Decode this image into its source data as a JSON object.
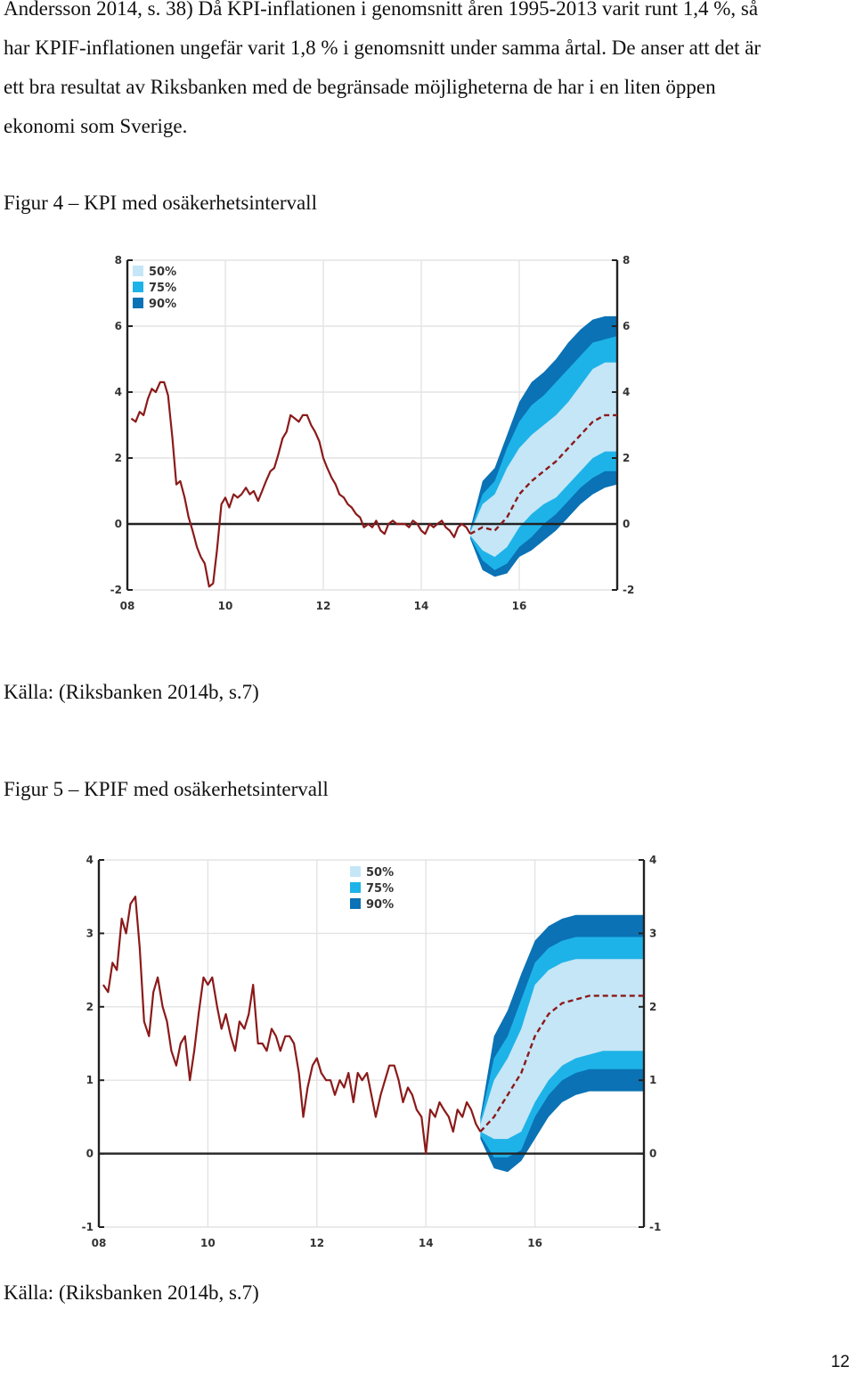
{
  "paragraph": {
    "lines": [
      "Andersson 2014, s. 38) Då KPI-inflationen i genomsnitt åren 1995-2013 varit runt 1,4 %, så",
      "har KPIF-inflationen ungefär varit 1,8 % i genomsnitt under samma årtal. De anser att det är",
      "ett bra resultat av Riksbanken med de begränsade möjligheterna de har i en liten öppen",
      "ekonomi som Sverige."
    ]
  },
  "figure4": {
    "caption": "Figur 4 – KPI med osäkerhetsintervall",
    "source": "Källa: (Riksbanken 2014b, s.7)"
  },
  "figure5": {
    "caption": "Figur 5 – KPIF med osäkerhetsintervall",
    "source": "Källa: (Riksbanken 2014b, s.7)"
  },
  "page_number": "12",
  "colors": {
    "line": "#8b1a1a",
    "band50": "#c5e6f7",
    "band75": "#1eb3e8",
    "band90": "#0a72b5",
    "axis": "#222222",
    "grid": "#e3e3e3"
  },
  "chart_data": [
    {
      "type": "area",
      "chart_id": "kpi",
      "xlim": [
        8,
        18
      ],
      "ylim": [
        -2,
        8
      ],
      "x_ticks": [
        8,
        10,
        12,
        14,
        16
      ],
      "x_tick_labels": [
        "08",
        "10",
        "12",
        "14",
        "16"
      ],
      "y_ticks": [
        -2,
        0,
        2,
        4,
        6,
        8
      ],
      "legend": [
        "50%",
        "75%",
        "90%"
      ],
      "legend_position": "top-left",
      "grid": true,
      "series": [
        {
          "kind": "outcome",
          "x": [
            8.08,
            8.17,
            8.25,
            8.33,
            8.42,
            8.5,
            8.58,
            8.67,
            8.75,
            8.83,
            8.92,
            9.0,
            9.08,
            9.17,
            9.25,
            9.33,
            9.42,
            9.5,
            9.58,
            9.67,
            9.75,
            9.83,
            9.92,
            10.0,
            10.08,
            10.17,
            10.25,
            10.33,
            10.42,
            10.5,
            10.58,
            10.67,
            10.75,
            10.83,
            10.92,
            11.0,
            11.08,
            11.17,
            11.25,
            11.33,
            11.42,
            11.5,
            11.58,
            11.67,
            11.75,
            11.83,
            11.92,
            12.0,
            12.08,
            12.17,
            12.25,
            12.33,
            12.42,
            12.5,
            12.58,
            12.67,
            12.75,
            12.83,
            12.92,
            13.0,
            13.08,
            13.17,
            13.25,
            13.33,
            13.42,
            13.5,
            13.58,
            13.67,
            13.75,
            13.83,
            13.92,
            14.0,
            14.08,
            14.17,
            14.25,
            14.33,
            14.42,
            14.5,
            14.58,
            14.67,
            14.75,
            14.83,
            14.92,
            15.0
          ],
          "y": [
            3.2,
            3.1,
            3.4,
            3.3,
            3.8,
            4.1,
            4.0,
            4.3,
            4.3,
            3.9,
            2.6,
            1.2,
            1.3,
            0.8,
            0.2,
            -0.2,
            -0.7,
            -1.0,
            -1.2,
            -1.9,
            -1.8,
            -0.8,
            0.6,
            0.8,
            0.5,
            0.9,
            0.8,
            0.9,
            1.1,
            0.9,
            1.0,
            0.7,
            1.0,
            1.3,
            1.6,
            1.7,
            2.1,
            2.6,
            2.8,
            3.3,
            3.2,
            3.1,
            3.3,
            3.3,
            3.0,
            2.8,
            2.5,
            2.0,
            1.7,
            1.4,
            1.2,
            0.9,
            0.8,
            0.6,
            0.5,
            0.3,
            0.2,
            -0.1,
            0.0,
            -0.1,
            0.1,
            -0.2,
            -0.3,
            0.0,
            0.1,
            0.0,
            0.0,
            0.0,
            -0.1,
            0.1,
            0.0,
            -0.2,
            -0.3,
            0.0,
            -0.1,
            0.0,
            0.1,
            -0.1,
            -0.2,
            -0.4,
            -0.1,
            0.0,
            -0.1,
            -0.3
          ]
        },
        {
          "kind": "forecast",
          "x": [
            15.0,
            15.25,
            15.5,
            15.75,
            16.0,
            16.25,
            16.5,
            16.75,
            17.0,
            17.25,
            17.5,
            17.75,
            18.0
          ],
          "y": [
            -0.3,
            -0.1,
            -0.2,
            0.2,
            0.9,
            1.3,
            1.6,
            1.9,
            2.3,
            2.7,
            3.1,
            3.3,
            3.3
          ],
          "band50": [
            [
              -0.35,
              -0.25
            ],
            [
              -0.8,
              0.6
            ],
            [
              -1.0,
              0.9
            ],
            [
              -0.7,
              1.7
            ],
            [
              -0.1,
              2.3
            ],
            [
              0.3,
              2.7
            ],
            [
              0.6,
              3.0
            ],
            [
              0.8,
              3.3
            ],
            [
              1.2,
              3.7
            ],
            [
              1.6,
              4.2
            ],
            [
              2.0,
              4.7
            ],
            [
              2.2,
              4.9
            ],
            [
              2.2,
              4.9
            ]
          ],
          "band75": [
            [
              -0.4,
              -0.2
            ],
            [
              -1.1,
              0.9
            ],
            [
              -1.4,
              1.3
            ],
            [
              -1.2,
              2.3
            ],
            [
              -0.7,
              3.1
            ],
            [
              -0.4,
              3.6
            ],
            [
              0.0,
              3.9
            ],
            [
              0.3,
              4.3
            ],
            [
              0.7,
              4.7
            ],
            [
              1.1,
              5.1
            ],
            [
              1.4,
              5.5
            ],
            [
              1.6,
              5.6
            ],
            [
              1.6,
              5.7
            ]
          ],
          "band90": [
            [
              -0.45,
              -0.15
            ],
            [
              -1.4,
              1.3
            ],
            [
              -1.6,
              1.7
            ],
            [
              -1.5,
              2.7
            ],
            [
              -1.0,
              3.7
            ],
            [
              -0.8,
              4.3
            ],
            [
              -0.5,
              4.6
            ],
            [
              -0.2,
              5.0
            ],
            [
              0.2,
              5.5
            ],
            [
              0.6,
              5.9
            ],
            [
              0.9,
              6.2
            ],
            [
              1.1,
              6.3
            ],
            [
              1.2,
              6.3
            ]
          ]
        }
      ]
    },
    {
      "type": "area",
      "chart_id": "kpif",
      "xlim": [
        8,
        18
      ],
      "ylim": [
        -1,
        4
      ],
      "x_ticks": [
        8,
        10,
        12,
        14,
        16
      ],
      "x_tick_labels": [
        "08",
        "10",
        "12",
        "14",
        "16"
      ],
      "y_ticks": [
        -1,
        0,
        1,
        2,
        3,
        4
      ],
      "legend": [
        "50%",
        "75%",
        "90%"
      ],
      "legend_position": "top-center",
      "grid": true,
      "series": [
        {
          "kind": "outcome",
          "x": [
            8.08,
            8.17,
            8.25,
            8.33,
            8.42,
            8.5,
            8.58,
            8.67,
            8.75,
            8.83,
            8.92,
            9.0,
            9.08,
            9.17,
            9.25,
            9.33,
            9.42,
            9.5,
            9.58,
            9.67,
            9.75,
            9.83,
            9.92,
            10.0,
            10.08,
            10.17,
            10.25,
            10.33,
            10.42,
            10.5,
            10.58,
            10.67,
            10.75,
            10.83,
            10.92,
            11.0,
            11.08,
            11.17,
            11.25,
            11.33,
            11.42,
            11.5,
            11.58,
            11.67,
            11.75,
            11.83,
            11.92,
            12.0,
            12.08,
            12.17,
            12.25,
            12.33,
            12.42,
            12.5,
            12.58,
            12.67,
            12.75,
            12.83,
            12.92,
            13.0,
            13.08,
            13.17,
            13.25,
            13.33,
            13.42,
            13.5,
            13.58,
            13.67,
            13.75,
            13.83,
            13.92,
            14.0,
            14.08,
            14.17,
            14.25,
            14.33,
            14.42,
            14.5,
            14.58,
            14.67,
            14.75,
            14.83,
            14.92,
            15.0
          ],
          "y": [
            2.3,
            2.2,
            2.6,
            2.5,
            3.2,
            3.0,
            3.4,
            3.5,
            2.8,
            1.8,
            1.6,
            2.2,
            2.4,
            2.0,
            1.8,
            1.4,
            1.2,
            1.5,
            1.6,
            1.0,
            1.4,
            1.9,
            2.4,
            2.3,
            2.4,
            2.0,
            1.7,
            1.9,
            1.6,
            1.4,
            1.8,
            1.7,
            1.9,
            2.3,
            1.5,
            1.5,
            1.4,
            1.7,
            1.6,
            1.4,
            1.6,
            1.6,
            1.5,
            1.1,
            0.5,
            0.9,
            1.2,
            1.3,
            1.1,
            1.0,
            1.0,
            0.8,
            1.0,
            0.9,
            1.1,
            0.7,
            1.1,
            1.0,
            1.1,
            0.8,
            0.5,
            0.8,
            1.0,
            1.2,
            1.2,
            1.0,
            0.7,
            0.9,
            0.8,
            0.6,
            0.5,
            0.0,
            0.6,
            0.5,
            0.7,
            0.6,
            0.5,
            0.3,
            0.6,
            0.5,
            0.7,
            0.6,
            0.4,
            0.3
          ]
        },
        {
          "kind": "forecast",
          "x": [
            15.0,
            15.25,
            15.5,
            15.75,
            16.0,
            16.25,
            16.5,
            16.75,
            17.0,
            17.25,
            17.5,
            17.75,
            18.0
          ],
          "y": [
            0.3,
            0.5,
            0.8,
            1.1,
            1.6,
            1.9,
            2.05,
            2.1,
            2.15,
            2.15,
            2.15,
            2.15,
            2.15
          ],
          "band50": [
            [
              0.3,
              0.4
            ],
            [
              0.2,
              1.0
            ],
            [
              0.2,
              1.3
            ],
            [
              0.3,
              1.7
            ],
            [
              0.7,
              2.3
            ],
            [
              1.0,
              2.5
            ],
            [
              1.2,
              2.6
            ],
            [
              1.3,
              2.65
            ],
            [
              1.35,
              2.65
            ],
            [
              1.4,
              2.65
            ],
            [
              1.4,
              2.65
            ],
            [
              1.4,
              2.65
            ],
            [
              1.4,
              2.65
            ]
          ],
          "band75": [
            [
              0.25,
              0.45
            ],
            [
              -0.05,
              1.3
            ],
            [
              -0.05,
              1.6
            ],
            [
              0.05,
              2.1
            ],
            [
              0.5,
              2.6
            ],
            [
              0.8,
              2.8
            ],
            [
              1.0,
              2.9
            ],
            [
              1.1,
              2.95
            ],
            [
              1.15,
              2.95
            ],
            [
              1.15,
              2.95
            ],
            [
              1.15,
              2.95
            ],
            [
              1.15,
              2.95
            ],
            [
              1.15,
              2.95
            ]
          ],
          "band90": [
            [
              0.2,
              0.5
            ],
            [
              -0.2,
              1.6
            ],
            [
              -0.25,
              1.95
            ],
            [
              -0.1,
              2.45
            ],
            [
              0.2,
              2.9
            ],
            [
              0.5,
              3.1
            ],
            [
              0.7,
              3.2
            ],
            [
              0.8,
              3.25
            ],
            [
              0.85,
              3.25
            ],
            [
              0.85,
              3.25
            ],
            [
              0.85,
              3.25
            ],
            [
              0.85,
              3.25
            ],
            [
              0.85,
              3.25
            ]
          ]
        }
      ]
    }
  ]
}
